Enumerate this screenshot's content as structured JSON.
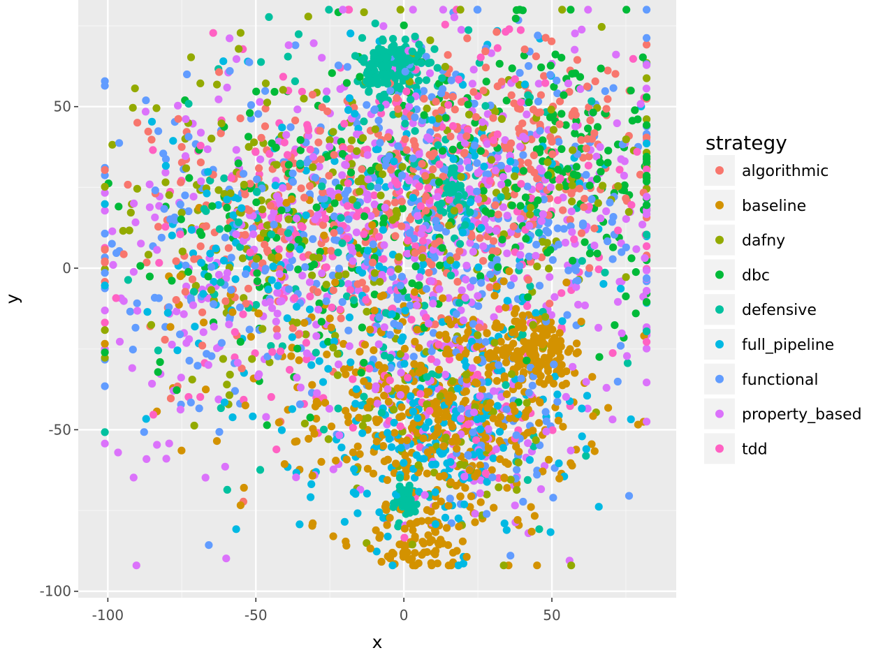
{
  "chart_data": {
    "type": "scatter",
    "title": "",
    "xlabel": "x",
    "ylabel": "y",
    "xlim": [
      -110,
      92
    ],
    "ylim": [
      -102,
      83
    ],
    "x_ticks": [
      -100,
      -50,
      0,
      50
    ],
    "y_ticks": [
      -100,
      -50,
      0,
      50
    ],
    "x_tick_labels": [
      "-100",
      "-50",
      "0",
      "50"
    ],
    "y_tick_labels": [
      "-100",
      "-50",
      "0",
      "50"
    ],
    "grid": true,
    "legend": {
      "title": "strategy",
      "position": "right"
    },
    "series": [
      {
        "name": "algorithmic",
        "color": "#F8766D",
        "clusters": [
          {
            "cx": 0,
            "cy": 20,
            "sx": 35,
            "sy": 22,
            "n": 260
          },
          {
            "cx": 45,
            "cy": 40,
            "sx": 20,
            "sy": 15,
            "n": 120
          },
          {
            "cx": -60,
            "cy": 10,
            "sx": 20,
            "sy": 20,
            "n": 80
          }
        ]
      },
      {
        "name": "baseline",
        "color": "#D39200",
        "clusters": [
          {
            "cx": 15,
            "cy": -45,
            "sx": 22,
            "sy": 18,
            "n": 420
          },
          {
            "cx": 45,
            "cy": -25,
            "sx": 6,
            "sy": 6,
            "n": 140
          },
          {
            "cx": 5,
            "cy": -85,
            "sx": 10,
            "sy": 5,
            "n": 70
          },
          {
            "cx": -40,
            "cy": -20,
            "sx": 25,
            "sy": 25,
            "n": 60
          }
        ]
      },
      {
        "name": "dafny",
        "color": "#93AA00",
        "clusters": [
          {
            "cx": 10,
            "cy": 25,
            "sx": 40,
            "sy": 25,
            "n": 200
          },
          {
            "cx": -60,
            "cy": 10,
            "sx": 25,
            "sy": 25,
            "n": 80
          },
          {
            "cx": 15,
            "cy": -50,
            "sx": 20,
            "sy": 20,
            "n": 60
          }
        ]
      },
      {
        "name": "dbc",
        "color": "#00BA38",
        "clusters": [
          {
            "cx": 15,
            "cy": 20,
            "sx": 40,
            "sy": 25,
            "n": 220
          },
          {
            "cx": 55,
            "cy": 40,
            "sx": 15,
            "sy": 15,
            "n": 80
          },
          {
            "cx": -50,
            "cy": 10,
            "sx": 25,
            "sy": 25,
            "n": 60
          }
        ]
      },
      {
        "name": "defensive",
        "color": "#00C19F",
        "clusters": [
          {
            "cx": -4,
            "cy": 62,
            "sx": 5,
            "sy": 5,
            "n": 160
          },
          {
            "cx": 17,
            "cy": 24,
            "sx": 3,
            "sy": 4,
            "n": 60
          },
          {
            "cx": 0,
            "cy": -72,
            "sx": 3,
            "sy": 3,
            "n": 50
          },
          {
            "cx": 0,
            "cy": 10,
            "sx": 40,
            "sy": 35,
            "n": 160
          }
        ]
      },
      {
        "name": "full_pipeline",
        "color": "#00B9E3",
        "clusters": [
          {
            "cx": 10,
            "cy": -50,
            "sx": 22,
            "sy": 18,
            "n": 220
          },
          {
            "cx": 10,
            "cy": 20,
            "sx": 35,
            "sy": 25,
            "n": 120
          },
          {
            "cx": -60,
            "cy": 0,
            "sx": 25,
            "sy": 25,
            "n": 60
          }
        ]
      },
      {
        "name": "functional",
        "color": "#619CFF",
        "clusters": [
          {
            "cx": 10,
            "cy": 15,
            "sx": 40,
            "sy": 25,
            "n": 380
          },
          {
            "cx": -70,
            "cy": 0,
            "sx": 20,
            "sy": 25,
            "n": 80
          },
          {
            "cx": 30,
            "cy": -50,
            "sx": 15,
            "sy": 15,
            "n": 60
          }
        ]
      },
      {
        "name": "property_based",
        "color": "#DB72FB",
        "clusters": [
          {
            "cx": 15,
            "cy": 15,
            "sx": 40,
            "sy": 30,
            "n": 420
          },
          {
            "cx": -55,
            "cy": -10,
            "sx": 25,
            "sy": 30,
            "n": 120
          },
          {
            "cx": 25,
            "cy": -50,
            "sx": 15,
            "sy": 15,
            "n": 60
          }
        ]
      },
      {
        "name": "tdd",
        "color": "#FF61C3",
        "clusters": [
          {
            "cx": 5,
            "cy": 15,
            "sx": 38,
            "sy": 28,
            "n": 200
          },
          {
            "cx": -40,
            "cy": 0,
            "sx": 25,
            "sy": 25,
            "n": 60
          },
          {
            "cx": 20,
            "cy": -50,
            "sx": 15,
            "sy": 15,
            "n": 50
          }
        ]
      }
    ]
  }
}
